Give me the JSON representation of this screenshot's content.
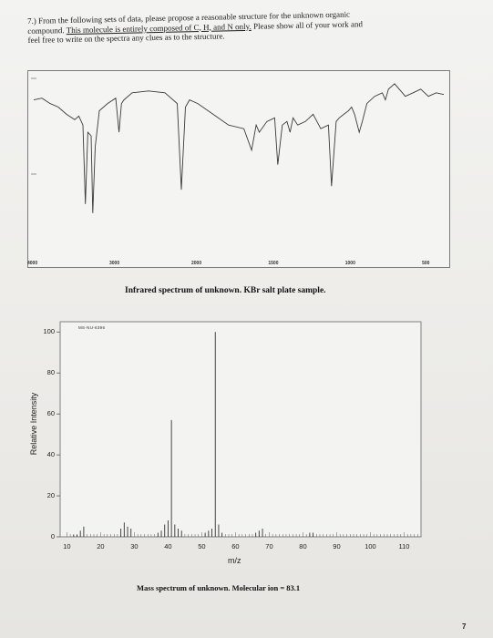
{
  "question": {
    "line1": "7.) From the following sets of data, please propose a reasonable structure for the unknown organic",
    "line2_prefix": "compound. ",
    "line2_underlined": "This molecule is entirely composed of C, H, and N only.",
    "line2_suffix": " Please show all of your work and",
    "line3": "feel free to write on the spectra any clues as to the structure."
  },
  "ir_spectrum": {
    "caption": "Infrared spectrum of unknown. KBr salt plate sample.",
    "tick_labels": [
      "4000",
      "3000",
      "2000",
      "1500",
      "1000",
      "500"
    ],
    "transmittance_trace": [
      [
        4000,
        88
      ],
      [
        3900,
        89
      ],
      [
        3800,
        86
      ],
      [
        3700,
        84
      ],
      [
        3600,
        80
      ],
      [
        3500,
        77
      ],
      [
        3450,
        79
      ],
      [
        3400,
        74
      ],
      [
        3370,
        30
      ],
      [
        3340,
        70
      ],
      [
        3300,
        68
      ],
      [
        3280,
        25
      ],
      [
        3250,
        62
      ],
      [
        3200,
        82
      ],
      [
        3100,
        86
      ],
      [
        3000,
        89
      ],
      [
        2960,
        70
      ],
      [
        2930,
        86
      ],
      [
        2900,
        88
      ],
      [
        2800,
        92
      ],
      [
        2600,
        93
      ],
      [
        2400,
        92
      ],
      [
        2250,
        86
      ],
      [
        2200,
        38
      ],
      [
        2150,
        84
      ],
      [
        2100,
        88
      ],
      [
        2000,
        86
      ],
      [
        1900,
        80
      ],
      [
        1800,
        74
      ],
      [
        1700,
        72
      ],
      [
        1650,
        60
      ],
      [
        1620,
        74
      ],
      [
        1600,
        70
      ],
      [
        1550,
        76
      ],
      [
        1500,
        78
      ],
      [
        1480,
        52
      ],
      [
        1450,
        74
      ],
      [
        1420,
        76
      ],
      [
        1400,
        70
      ],
      [
        1380,
        78
      ],
      [
        1350,
        74
      ],
      [
        1300,
        76
      ],
      [
        1250,
        80
      ],
      [
        1200,
        72
      ],
      [
        1150,
        74
      ],
      [
        1130,
        40
      ],
      [
        1100,
        76
      ],
      [
        1080,
        78
      ],
      [
        1050,
        80
      ],
      [
        1020,
        82
      ],
      [
        1000,
        84
      ],
      [
        980,
        80
      ],
      [
        950,
        70
      ],
      [
        930,
        76
      ],
      [
        900,
        86
      ],
      [
        850,
        90
      ],
      [
        800,
        92
      ],
      [
        780,
        88
      ],
      [
        760,
        94
      ],
      [
        720,
        97
      ],
      [
        680,
        93
      ],
      [
        650,
        90
      ],
      [
        600,
        92
      ],
      [
        550,
        94
      ],
      [
        500,
        90
      ],
      [
        450,
        92
      ],
      [
        400,
        91
      ]
    ]
  },
  "mass_spectrum": {
    "code": "MS-NU-6396",
    "ylabel": "Relative Intensity",
    "xlabel": "m/z",
    "y_ticks": [
      "100",
      "80",
      "60",
      "40",
      "20",
      "0"
    ],
    "x_ticks": [
      "10",
      "20",
      "30",
      "40",
      "50",
      "60",
      "70",
      "80",
      "90",
      "100",
      "110"
    ],
    "caption": "Mass spectrum of unknown. Molecular ion = 83.1"
  },
  "chart_data": {
    "type": "bar",
    "title": "",
    "xlabel": "m/z",
    "ylabel": "Relative Intensity",
    "xlim": [
      8,
      115
    ],
    "ylim": [
      0,
      105
    ],
    "peaks": [
      {
        "mz": 12,
        "intensity": 1
      },
      {
        "mz": 13,
        "intensity": 1
      },
      {
        "mz": 14,
        "intensity": 3
      },
      {
        "mz": 15,
        "intensity": 5
      },
      {
        "mz": 26,
        "intensity": 4
      },
      {
        "mz": 27,
        "intensity": 7
      },
      {
        "mz": 28,
        "intensity": 5
      },
      {
        "mz": 29,
        "intensity": 4
      },
      {
        "mz": 37,
        "intensity": 2
      },
      {
        "mz": 38,
        "intensity": 3
      },
      {
        "mz": 39,
        "intensity": 6
      },
      {
        "mz": 40,
        "intensity": 8
      },
      {
        "mz": 41,
        "intensity": 57
      },
      {
        "mz": 42,
        "intensity": 6
      },
      {
        "mz": 43,
        "intensity": 4
      },
      {
        "mz": 44,
        "intensity": 3
      },
      {
        "mz": 51,
        "intensity": 2
      },
      {
        "mz": 52,
        "intensity": 3
      },
      {
        "mz": 53,
        "intensity": 4
      },
      {
        "mz": 54,
        "intensity": 100
      },
      {
        "mz": 55,
        "intensity": 6
      },
      {
        "mz": 56,
        "intensity": 2
      },
      {
        "mz": 66,
        "intensity": 2
      },
      {
        "mz": 67,
        "intensity": 3
      },
      {
        "mz": 68,
        "intensity": 4
      },
      {
        "mz": 82,
        "intensity": 2
      },
      {
        "mz": 83,
        "intensity": 2
      }
    ]
  },
  "page_number": "7"
}
